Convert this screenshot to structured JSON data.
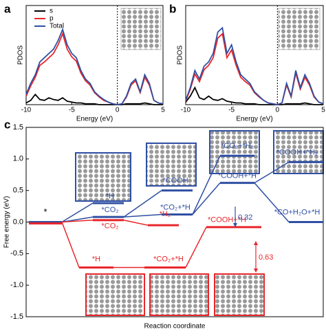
{
  "chart_data": [
    {
      "type": "line",
      "panel": "a",
      "xlabel": "Energy (eV)",
      "ylabel": "PDOS",
      "legend": "upper-right",
      "x": [
        -10,
        -9.5,
        -9,
        -8.5,
        -8,
        -7.5,
        -7,
        -6.5,
        -6,
        -5.5,
        -5,
        -4.5,
        -4,
        -3.5,
        -3,
        -2.5,
        -2,
        -1.5,
        -1,
        -0.5,
        0,
        0.5,
        1,
        1.5,
        2,
        2.5,
        3,
        3.5,
        4,
        4.5,
        5
      ],
      "xlim": [
        -10,
        5
      ],
      "xticks": [
        -10,
        -5,
        0,
        5
      ],
      "ylim": [
        0,
        10
      ],
      "vline": 0,
      "series": [
        {
          "name": "s",
          "color": "#000000",
          "values": [
            0.2,
            0.5,
            1.2,
            0.6,
            0.5,
            0.8,
            0.6,
            0.5,
            0.8,
            0.4,
            0.3,
            0.2,
            0.2,
            0.1,
            0.1,
            0.1,
            0,
            0,
            0,
            0,
            0,
            0,
            0.1,
            0.1,
            0.1,
            0.1,
            0.2,
            0.1,
            0,
            0,
            0
          ]
        },
        {
          "name": "p",
          "color": "#e8262b",
          "values": [
            1,
            2.2,
            3.2,
            4.6,
            5,
            5.5,
            6,
            7,
            8.3,
            6.5,
            5.6,
            5.1,
            3.7,
            2.8,
            2.3,
            1.4,
            0.9,
            0.5,
            0.3,
            0.1,
            0,
            0.1,
            0.9,
            2.3,
            2.8,
            1.4,
            3.2,
            2.3,
            0.5,
            0.2,
            0.1
          ]
        },
        {
          "name": "Total",
          "color": "#2f4fa3",
          "values": [
            1.2,
            2.5,
            3.5,
            5,
            5.5,
            6,
            6.5,
            7.5,
            8.8,
            7,
            6,
            5.5,
            4,
            3,
            2.5,
            1.5,
            1,
            0.6,
            0.3,
            0.1,
            0,
            0.1,
            1,
            2.5,
            3,
            1.5,
            3.5,
            2.5,
            0.5,
            0.2,
            0.1
          ]
        }
      ]
    },
    {
      "type": "line",
      "panel": "b",
      "xlabel": "Energy (eV)",
      "ylabel": "PDOS",
      "x": [
        -10,
        -9.5,
        -9,
        -8.5,
        -8,
        -7.5,
        -7,
        -6.5,
        -6,
        -5.5,
        -5,
        -4.5,
        -4,
        -3.5,
        -3,
        -2.5,
        -2,
        -1.5,
        -1,
        -0.5,
        0,
        0.5,
        1,
        1.5,
        2,
        2.5,
        3,
        3.5,
        4,
        4.5,
        5
      ],
      "xlim": [
        -10,
        5
      ],
      "xticks": [
        -10,
        -5,
        0,
        5
      ],
      "ylim": [
        0,
        10
      ],
      "vline": 0,
      "series": [
        {
          "color": "#000000",
          "values": [
            0.3,
            1,
            2,
            0.8,
            0.6,
            1,
            0.6,
            0.5,
            0.7,
            0.4,
            0.3,
            0.2,
            0.2,
            0.1,
            0.1,
            0.1,
            0,
            0,
            0,
            0,
            0,
            0,
            0.1,
            0.1,
            0.1,
            0.1,
            0.2,
            0.1,
            0,
            0,
            0
          ]
        },
        {
          "color": "#e8262b",
          "values": [
            0.4,
            1.8,
            3.6,
            2.7,
            4.1,
            4.6,
            5.5,
            7.8,
            8.3,
            5.5,
            6.4,
            4.6,
            3.2,
            2.7,
            2.3,
            1.4,
            0.9,
            0.5,
            0.2,
            0.1,
            0,
            0.2,
            2.3,
            0.9,
            3.7,
            1.8,
            3.2,
            2.3,
            0.9,
            0.3,
            0.1
          ]
        },
        {
          "color": "#2f4fa3",
          "values": [
            0.5,
            2,
            4,
            3,
            4.5,
            5,
            6,
            8.5,
            9,
            6,
            7,
            5,
            3.5,
            3,
            2.5,
            1.5,
            1,
            0.5,
            0.2,
            0.1,
            0,
            0.2,
            2.5,
            1,
            4,
            2,
            3.5,
            2.5,
            1,
            0.3,
            0.1
          ]
        }
      ]
    },
    {
      "type": "energy-diagram",
      "panel": "c",
      "xlabel": "Reaction coordinate",
      "ylabel": "Free energy (eV)",
      "ylim": [
        -1.5,
        1.5
      ],
      "yticks": [
        1.5,
        {
          "value": 1.0,
          "label": "1.0"
        },
        0.5,
        {
          "value": 0.0,
          "label": "0.0"
        },
        -0.5,
        {
          "value": -1.0,
          "label": "-1.0"
        },
        -1.5
      ],
      "start": {
        "label": "*",
        "value": 0
      },
      "series": [
        {
          "color": "#2f4fa3",
          "labels": [
            "*H",
            "*CO₂",
            "*COOH",
            "*CO₂+*H",
            "*CO₂+*H₂",
            "*COOH+*H",
            "*COOH+*H₂",
            "*CO+H₂O+*H"
          ],
          "values": [
            0.3,
            0.08,
            0.5,
            0.12,
            1.05,
            0.62,
            0.95,
            0.0
          ]
        },
        {
          "color": "#e8262b",
          "labels": [
            "*CO₂",
            "*H",
            "*H₂",
            "*CO₂+*H",
            "*COOH+*H"
          ],
          "values": [
            0.03,
            -0.72,
            -0.05,
            -0.72,
            -0.08
          ]
        }
      ],
      "annotations": [
        "0.32",
        "0.63"
      ]
    }
  ]
}
